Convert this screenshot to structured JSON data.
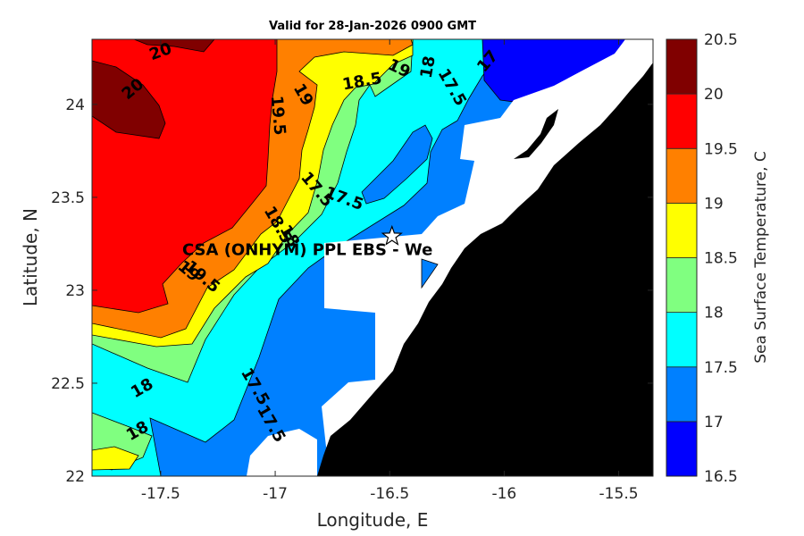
{
  "chart_data": {
    "type": "contour_map",
    "title": "Valid for 28-Jan-2026 0900 GMT",
    "xlabel": "Longitude, E",
    "ylabel": "Latitude, N",
    "xlim": [
      -17.8,
      -15.35
    ],
    "ylim": [
      22.0,
      24.35
    ],
    "x_ticks": [
      -17.5,
      -17,
      -16.5,
      -16,
      -15.5
    ],
    "x_tick_labels": [
      "-17.5",
      "-17",
      "-16.5",
      "-16",
      "-15.5"
    ],
    "y_ticks": [
      22,
      22.5,
      23,
      23.5,
      24
    ],
    "y_tick_labels": [
      "22",
      "22.5",
      "23",
      "23.5",
      "24"
    ],
    "colorbar": {
      "label": "Sea Surface Temperature, C",
      "levels": [
        16.5,
        17,
        17.5,
        18,
        18.5,
        19,
        19.5,
        20,
        20.5
      ],
      "tick_labels": [
        "16.5",
        "17",
        "17.5",
        "18",
        "18.5",
        "19",
        "19.5",
        "20",
        "20.5"
      ],
      "colors": [
        "#0000ff",
        "#0080ff",
        "#00ffff",
        "#80ff80",
        "#ffff00",
        "#ff8000",
        "#ff0000",
        "#800000"
      ]
    },
    "contour_labels": [
      {
        "text": "20",
        "lon": -17.5,
        "lat": 24.28,
        "angle": 20
      },
      {
        "text": "20",
        "lon": -17.62,
        "lat": 24.08,
        "angle": 40
      },
      {
        "text": "19.5",
        "lon": -16.99,
        "lat": 23.94,
        "angle": -85
      },
      {
        "text": "19",
        "lon": -16.88,
        "lat": 24.05,
        "angle": -60
      },
      {
        "text": "18.5",
        "lon": -16.62,
        "lat": 24.12,
        "angle": 10
      },
      {
        "text": "19",
        "lon": -16.46,
        "lat": 24.19,
        "angle": -25
      },
      {
        "text": "18",
        "lon": -16.33,
        "lat": 24.2,
        "angle": 80
      },
      {
        "text": "17.5",
        "lon": -16.23,
        "lat": 24.09,
        "angle": -60
      },
      {
        "text": "17",
        "lon": -16.07,
        "lat": 24.23,
        "angle": 50
      },
      {
        "text": "17.5",
        "lon": -16.82,
        "lat": 23.54,
        "angle": -50
      },
      {
        "text": "17.5",
        "lon": -16.7,
        "lat": 23.49,
        "angle": -20
      },
      {
        "text": "18.5",
        "lon": -16.99,
        "lat": 23.35,
        "angle": -60
      },
      {
        "text": "18",
        "lon": -16.94,
        "lat": 23.29,
        "angle": -60
      },
      {
        "text": "19",
        "lon": -17.38,
        "lat": 23.1,
        "angle": -40
      },
      {
        "text": "19.5",
        "lon": -17.32,
        "lat": 23.07,
        "angle": -40
      },
      {
        "text": "18",
        "lon": -17.58,
        "lat": 22.47,
        "angle": 30
      },
      {
        "text": "18",
        "lon": -17.6,
        "lat": 22.24,
        "angle": 30
      },
      {
        "text": "17.5",
        "lon": -17.09,
        "lat": 22.48,
        "angle": -60
      },
      {
        "text": "17.5",
        "lon": -17.02,
        "lat": 22.28,
        "angle": -60
      }
    ],
    "station": {
      "label": "CSA (ONHYM) PPL EBS  - We",
      "lon": -16.49,
      "lat": 23.29,
      "marker": "star"
    }
  }
}
